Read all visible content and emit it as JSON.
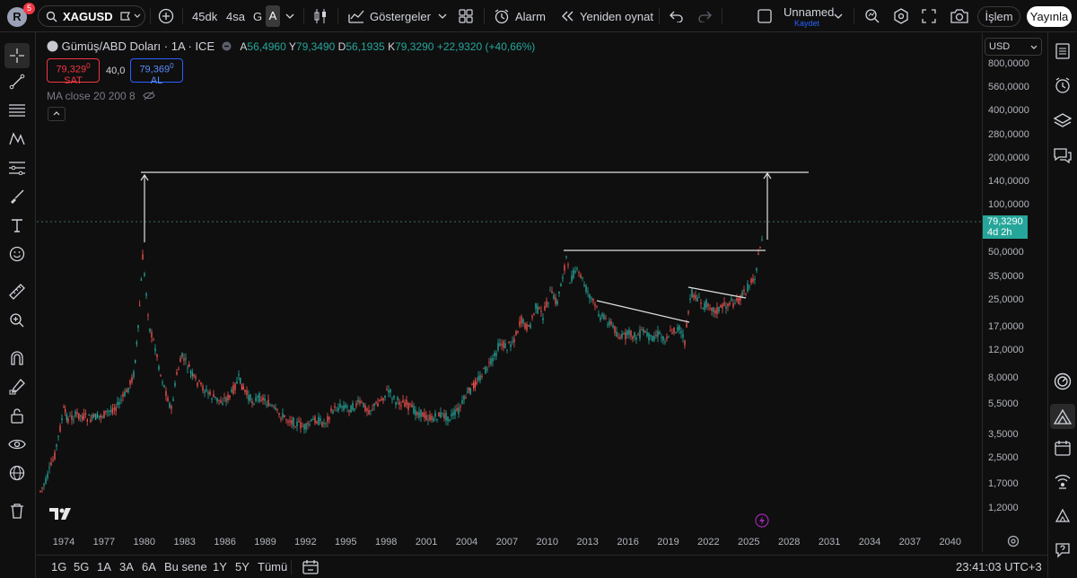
{
  "topbar": {
    "avatar_letter": "R",
    "notification_count": "5",
    "symbol": "XAGUSD",
    "intervals": [
      "45dk",
      "4sa",
      "G",
      "A"
    ],
    "indicators_label": "Göstergeler",
    "alarm_label": "Alarm",
    "replay_label": "Yeniden oynat",
    "layout_name": "Unnamed",
    "layout_status": "Kaydet",
    "trade_label": "İşlem",
    "publish_label": "Yayınla"
  },
  "legend": {
    "title": "Gümüş/ABD Doları · 1A · ICE",
    "open_key": "A",
    "open": "56,4960",
    "high_key": "Y",
    "high": "79,3490",
    "low_key": "D",
    "low": "56,1935",
    "close_key": "K",
    "close": "79,3290",
    "change": "+22,9320 (+40,66%)",
    "sell_price": "79,329",
    "sell_price_small": "0",
    "sell_label": "SAT",
    "spread": "40,0",
    "buy_price": "79,369",
    "buy_price_small": "0",
    "buy_label": "AL",
    "ma_text": "MA close 20 200 8"
  },
  "price_axis": {
    "currency": "USD",
    "labels": [
      "800,0000",
      "560,0000",
      "400,0000",
      "280,0000",
      "200,0000",
      "140,0000",
      "100,0000",
      "50,0000",
      "35,0000",
      "25,0000",
      "17,0000",
      "12,0000",
      "8,0000",
      "5,5000",
      "3,5000",
      "2,5000",
      "1,7000",
      "1,2000"
    ],
    "current_price": "79,3290",
    "countdown": "4d 2h"
  },
  "time_axis": {
    "years": [
      "1974",
      "1977",
      "1980",
      "1983",
      "1986",
      "1989",
      "1992",
      "1995",
      "1998",
      "2001",
      "2004",
      "2007",
      "2010",
      "2013",
      "2016",
      "2019",
      "2022",
      "2025",
      "2028",
      "2031",
      "2034",
      "2037",
      "2040"
    ]
  },
  "bottombar": {
    "ranges": [
      "1G",
      "5G",
      "1A",
      "3A",
      "6A",
      "Bu sene",
      "1Y",
      "5Y",
      "Tümü"
    ],
    "clock": "23:41:03 UTC+3"
  },
  "colors": {
    "up": "#26a69a",
    "down": "#ef5350",
    "sell": "#f23645",
    "buy": "#2962ff",
    "background": "#0f0f0f"
  },
  "icons": {
    "left_toolbar": [
      "crosshair-icon",
      "trend-line-icon",
      "horizontal-lines-icon",
      "pattern-icon",
      "fib-icon",
      "brush-icon",
      "text-icon",
      "emoji-icon",
      "ruler-icon",
      "zoom-icon",
      "magnet-icon",
      "lock-draw-icon",
      "lock-icon",
      "eye-icon",
      "globe-icon",
      "trash-icon"
    ],
    "right_toolbar": [
      "watchlist-icon",
      "alerts-icon",
      "layers-icon",
      "chat-icon",
      "compass-icon",
      "ideas-icon",
      "calendar-icon",
      "broadcast-icon",
      "tiles-icon",
      "help-icon"
    ]
  }
}
